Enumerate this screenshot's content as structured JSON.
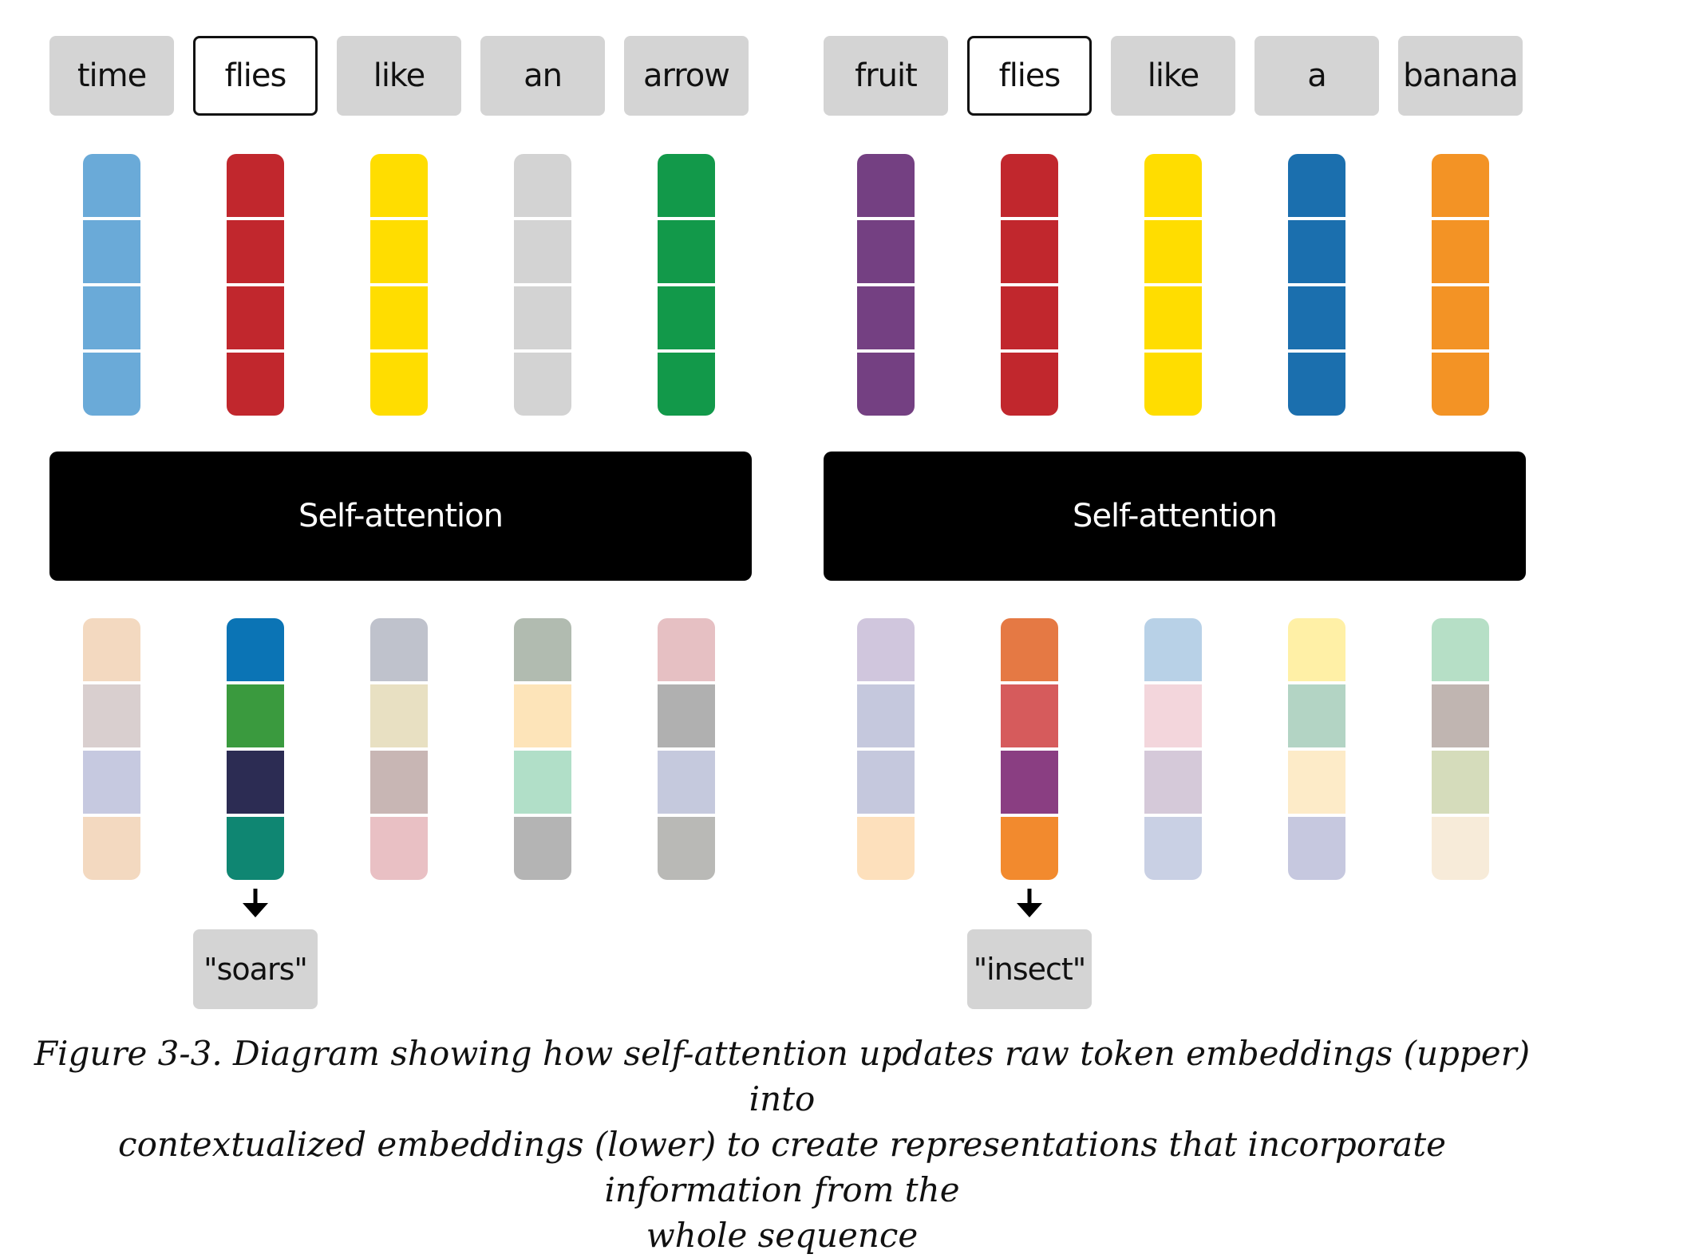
{
  "panels": [
    {
      "tokens": [
        "time",
        "flies",
        "like",
        "an",
        "arrow"
      ],
      "highlight_index": 1,
      "raw_embeddings": [
        [
          "#6aaad8",
          "#6aaad8",
          "#6aaad8",
          "#6aaad8"
        ],
        [
          "#c1272d",
          "#c1272d",
          "#c1272d",
          "#c1272d"
        ],
        [
          "#ffdd00",
          "#ffdd00",
          "#ffdd00",
          "#ffdd00"
        ],
        [
          "#d3d3d3",
          "#d3d3d3",
          "#d3d3d3",
          "#d3d3d3"
        ],
        [
          "#12994a",
          "#12994a",
          "#12994a",
          "#12994a"
        ]
      ],
      "attention_label": "Self-attention",
      "contextual_embeddings": [
        [
          "#f3d9c0",
          "#d9cfcf",
          "#c6c9e0",
          "#f3d9c0"
        ],
        [
          "#0b74b5",
          "#3a9a3e",
          "#2c2c53",
          "#0f8672"
        ],
        [
          "#bfc2cc",
          "#e8e0c2",
          "#c8b6b4",
          "#e9c0c4"
        ],
        [
          "#b1bbb0",
          "#fde4b9",
          "#b1dfc8",
          "#b4b4b4"
        ],
        [
          "#e6c0c3",
          "#b0b0b0",
          "#c5c9dd",
          "#b9b9b6"
        ]
      ],
      "output_label": "\"soars\""
    },
    {
      "tokens": [
        "fruit",
        "flies",
        "like",
        "a",
        "banana"
      ],
      "highlight_index": 1,
      "raw_embeddings": [
        [
          "#744082",
          "#744082",
          "#744082",
          "#744082"
        ],
        [
          "#c1272d",
          "#c1272d",
          "#c1272d",
          "#c1272d"
        ],
        [
          "#ffdd00",
          "#ffdd00",
          "#ffdd00",
          "#ffdd00"
        ],
        [
          "#1b6fae",
          "#1b6fae",
          "#1b6fae",
          "#1b6fae"
        ],
        [
          "#f39325",
          "#f39325",
          "#f39325",
          "#f39325"
        ]
      ],
      "attention_label": "Self-attention",
      "contextual_embeddings": [
        [
          "#d0c6dd",
          "#c5c8dd",
          "#c5c8dd",
          "#fde0bc"
        ],
        [
          "#e57944",
          "#d65b5c",
          "#8a3e82",
          "#f28a2e"
        ],
        [
          "#b8d1e7",
          "#f3d6dc",
          "#d5c9d9",
          "#c9d0e4"
        ],
        [
          "#fff0a6",
          "#b3d4c4",
          "#fdebc8",
          "#c6c8df"
        ],
        [
          "#b6dfc6",
          "#c0b5b1",
          "#d5dcbb",
          "#f7ebd9"
        ]
      ],
      "output_label": "\"insect\""
    }
  ],
  "caption": {
    "line1": "Figure 3-3. Diagram showing how self-attention updates raw token embeddings (upper) into",
    "line2": "contextualized embeddings (lower) to create representations that incorporate information from the",
    "line3": "whole sequence"
  }
}
